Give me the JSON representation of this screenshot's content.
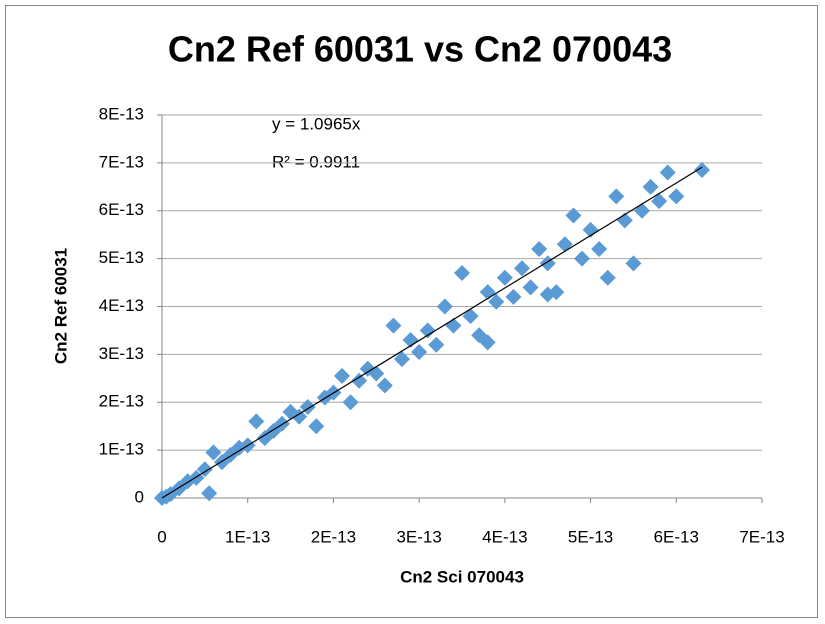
{
  "chart_data": {
    "type": "scatter",
    "title": "Cn2 Ref 60031 vs Cn2 070043",
    "x_label": "Cn2 Sci 070043",
    "y_label": "Cn2 Ref 60031",
    "annotations": [
      "y = 1.0965x",
      "R² = 0.9911"
    ],
    "series": [
      {
        "name": "Cn2 Ref 60031",
        "color": "#5b9bd5",
        "x": [
          0,
          5e-15,
          1e-14,
          2e-14,
          3e-14,
          4e-14,
          5e-14,
          5.5e-14,
          6e-14,
          7e-14,
          8e-14,
          9e-14,
          1e-13,
          1.1e-13,
          1.2e-13,
          1.3e-13,
          1.4e-13,
          1.5e-13,
          1.6e-13,
          1.7e-13,
          1.8e-13,
          1.9e-13,
          2e-13,
          2.1e-13,
          2.2e-13,
          2.3e-13,
          2.4e-13,
          2.5e-13,
          2.6e-13,
          2.7e-13,
          2.8e-13,
          2.9e-13,
          3e-13,
          3.1e-13,
          3.2e-13,
          3.3e-13,
          3.4e-13,
          3.5e-13,
          3.6e-13,
          3.7e-13,
          3.8e-13,
          3.8e-13,
          3.9e-13,
          4e-13,
          4.1e-13,
          4.2e-13,
          4.3e-13,
          4.4e-13,
          4.5e-13,
          4.5e-13,
          4.6e-13,
          4.7e-13,
          4.8e-13,
          4.9e-13,
          5e-13,
          5.1e-13,
          5.2e-13,
          5.3e-13,
          5.4e-13,
          5.5e-13,
          5.6e-13,
          5.7e-13,
          5.8e-13,
          5.9e-13,
          6e-13,
          6.3e-13
        ],
        "y": [
          0,
          3e-15,
          8e-15,
          2e-14,
          3.5e-14,
          4.2e-14,
          6e-14,
          1e-14,
          9.5e-14,
          7.5e-14,
          9e-14,
          1.05e-13,
          1.1e-13,
          1.6e-13,
          1.25e-13,
          1.4e-13,
          1.55e-13,
          1.8e-13,
          1.7e-13,
          1.9e-13,
          1.5e-13,
          2.1e-13,
          2.2e-13,
          2.55e-13,
          2e-13,
          2.45e-13,
          2.7e-13,
          2.6e-13,
          2.35e-13,
          3.6e-13,
          2.9e-13,
          3.3e-13,
          3.05e-13,
          3.5e-13,
          3.2e-13,
          4e-13,
          3.6e-13,
          4.7e-13,
          3.8e-13,
          3.4e-13,
          4.3e-13,
          3.25e-13,
          4.1e-13,
          4.6e-13,
          4.2e-13,
          4.8e-13,
          4.4e-13,
          5.2e-13,
          4.9e-13,
          4.25e-13,
          4.3e-13,
          5.3e-13,
          5.9e-13,
          5e-13,
          5.6e-13,
          5.2e-13,
          4.6e-13,
          6.3e-13,
          5.8e-13,
          4.9e-13,
          6e-13,
          6.5e-13,
          6.2e-13,
          6.8e-13,
          6.3e-13,
          6.85e-13
        ]
      }
    ],
    "trendline": {
      "color": "#000000",
      "x": [
        0,
        6.3e-13
      ],
      "y": [
        0,
        6.908e-13
      ]
    },
    "xlim": [
      0,
      7e-13
    ],
    "xticks": [
      0,
      {
        "value": 1e-13,
        "label": "1E-13"
      },
      {
        "value": 2e-13,
        "label": "2E-13"
      },
      {
        "value": 3e-13,
        "label": "3E-13"
      },
      {
        "value": 4e-13,
        "label": "4E-13"
      },
      {
        "value": 5e-13,
        "label": "5E-13"
      },
      {
        "value": 6e-13,
        "label": "6E-13"
      },
      {
        "value": 7e-13,
        "label": "7E-13"
      }
    ],
    "ylim": [
      0,
      8e-13
    ],
    "yticks": [
      0,
      {
        "value": 1e-13,
        "label": "1E-13"
      },
      {
        "value": 2e-13,
        "label": "2E-13"
      },
      {
        "value": 3e-13,
        "label": "3E-13"
      },
      {
        "value": 4e-13,
        "label": "4E-13"
      },
      {
        "value": 5e-13,
        "label": "5E-13"
      },
      {
        "value": 6e-13,
        "label": "6E-13"
      },
      {
        "value": 7e-13,
        "label": "7E-13"
      },
      {
        "value": 8e-13,
        "label": "8E-13"
      }
    ],
    "grid": true
  }
}
